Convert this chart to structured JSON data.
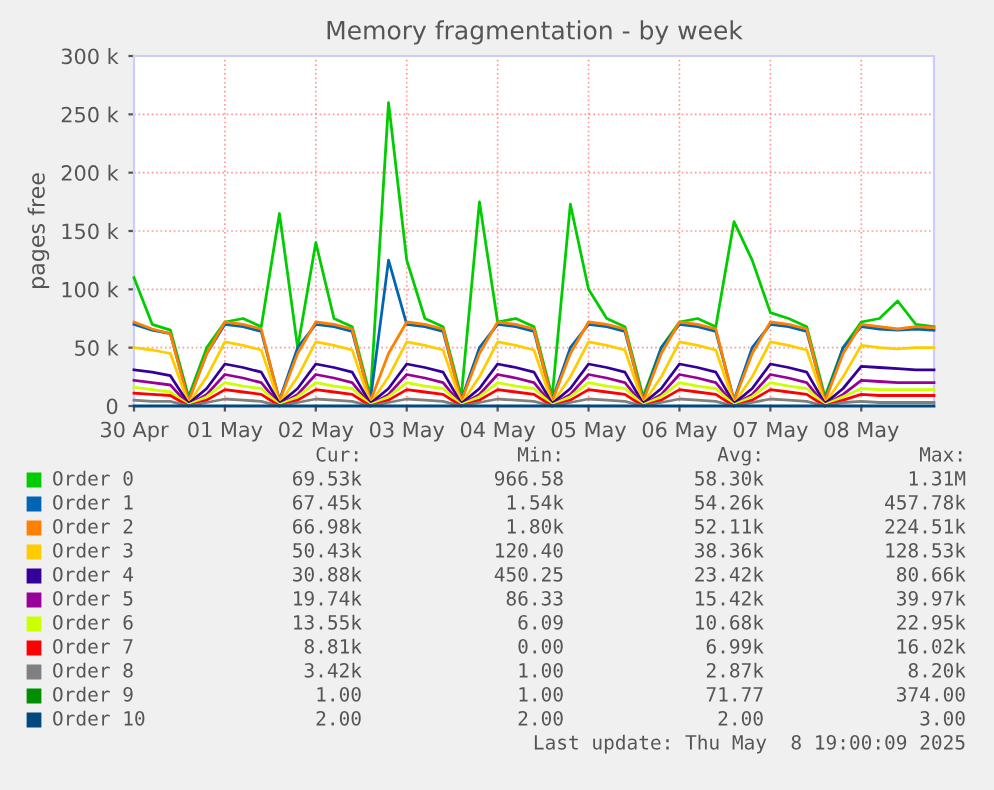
{
  "chart_data": {
    "type": "line",
    "title": "Memory fragmentation - by week",
    "ylabel": "pages free",
    "x": [
      "2025-04-30T00:00",
      "2025-04-30T04:48",
      "2025-04-30T09:36",
      "2025-04-30T14:24",
      "2025-04-30T19:12",
      "2025-05-01T00:00",
      "2025-05-01T04:48",
      "2025-05-01T09:36",
      "2025-05-01T14:24",
      "2025-05-01T19:12",
      "2025-05-02T00:00",
      "2025-05-02T04:48",
      "2025-05-02T09:36",
      "2025-05-02T14:24",
      "2025-05-02T19:12",
      "2025-05-03T00:00",
      "2025-05-03T04:48",
      "2025-05-03T09:36",
      "2025-05-03T14:24",
      "2025-05-03T19:12",
      "2025-05-04T00:00",
      "2025-05-04T04:48",
      "2025-05-04T09:36",
      "2025-05-04T14:24",
      "2025-05-04T19:12",
      "2025-05-05T00:00",
      "2025-05-05T04:48",
      "2025-05-05T09:36",
      "2025-05-05T14:24",
      "2025-05-05T19:12",
      "2025-05-06T00:00",
      "2025-05-06T04:48",
      "2025-05-06T09:36",
      "2025-05-06T14:24",
      "2025-05-06T19:12",
      "2025-05-07T00:00",
      "2025-05-07T04:48",
      "2025-05-07T09:36",
      "2025-05-07T14:24",
      "2025-05-07T19:12",
      "2025-05-08T00:00",
      "2025-05-08T04:48",
      "2025-05-08T09:36",
      "2025-05-08T14:24",
      "2025-05-08T19:12"
    ],
    "xlim": [
      "2025-04-30T00:00",
      "2025-05-08T19:12"
    ],
    "xticks": [
      {
        "value": "2025-04-30",
        "label": "30 Apr"
      },
      {
        "value": "2025-05-01",
        "label": "01 May"
      },
      {
        "value": "2025-05-02",
        "label": "02 May"
      },
      {
        "value": "2025-05-03",
        "label": "03 May"
      },
      {
        "value": "2025-05-04",
        "label": "04 May"
      },
      {
        "value": "2025-05-05",
        "label": "05 May"
      },
      {
        "value": "2025-05-06",
        "label": "06 May"
      },
      {
        "value": "2025-05-07",
        "label": "07 May"
      },
      {
        "value": "2025-05-08",
        "label": "08 May"
      }
    ],
    "ylim": [
      0,
      300000
    ],
    "yticks": [
      0,
      {
        "value": 50000,
        "label": "50 k"
      },
      {
        "value": 100000,
        "label": "100 k"
      },
      {
        "value": 150000,
        "label": "150 k"
      },
      {
        "value": 200000,
        "label": "200 k"
      },
      {
        "value": 250000,
        "label": "250 k"
      },
      {
        "value": 300000,
        "label": "300 k"
      }
    ],
    "grid": true,
    "legend": "bottom",
    "marker": "none",
    "line_style": "solid",
    "series": [
      {
        "name": "Order 0",
        "color": "#00cc00",
        "values": [
          110000,
          70000,
          65000,
          8000,
          50000,
          72000,
          75000,
          68000,
          165000,
          50000,
          140000,
          75000,
          68000,
          8000,
          260000,
          125000,
          75000,
          68000,
          8000,
          175000,
          72000,
          75000,
          68000,
          8000,
          173000,
          100000,
          75000,
          68000,
          8000,
          50000,
          72000,
          75000,
          68000,
          158000,
          125000,
          80000,
          75000,
          68000,
          8000,
          50000,
          72000,
          75000,
          90000,
          70000,
          68000
        ]
      },
      {
        "name": "Order 1",
        "color": "#0066b3",
        "values": [
          70000,
          65000,
          62000,
          5000,
          45000,
          70000,
          68000,
          64000,
          5000,
          50000,
          70000,
          68000,
          64000,
          5000,
          125000,
          70000,
          68000,
          64000,
          5000,
          50000,
          70000,
          68000,
          64000,
          5000,
          50000,
          70000,
          68000,
          64000,
          5000,
          50000,
          70000,
          68000,
          64000,
          5000,
          50000,
          70000,
          68000,
          64000,
          5000,
          50000,
          68000,
          66000,
          65000,
          66000,
          65000
        ]
      },
      {
        "name": "Order 2",
        "color": "#ff8000",
        "values": [
          72000,
          66000,
          62000,
          4000,
          45000,
          72000,
          70000,
          66000,
          4000,
          45000,
          72000,
          70000,
          66000,
          4000,
          45000,
          72000,
          70000,
          66000,
          4000,
          45000,
          72000,
          70000,
          66000,
          4000,
          45000,
          72000,
          70000,
          66000,
          4000,
          45000,
          72000,
          70000,
          66000,
          4000,
          45000,
          72000,
          70000,
          66000,
          4000,
          45000,
          70000,
          68000,
          66000,
          68000,
          67000
        ]
      },
      {
        "name": "Order 3",
        "color": "#ffcc00",
        "values": [
          50000,
          48000,
          45000,
          2000,
          25000,
          55000,
          52000,
          48000,
          2000,
          25000,
          55000,
          52000,
          48000,
          2000,
          25000,
          55000,
          52000,
          48000,
          2000,
          25000,
          55000,
          52000,
          48000,
          2000,
          25000,
          55000,
          52000,
          48000,
          2000,
          25000,
          55000,
          52000,
          48000,
          2000,
          25000,
          55000,
          52000,
          48000,
          2000,
          25000,
          52000,
          50000,
          49000,
          50000,
          50000
        ]
      },
      {
        "name": "Order 4",
        "color": "#330099",
        "values": [
          31000,
          29000,
          26000,
          2000,
          15000,
          36000,
          33000,
          29000,
          2000,
          15000,
          36000,
          33000,
          29000,
          2000,
          15000,
          36000,
          33000,
          29000,
          2000,
          15000,
          36000,
          33000,
          29000,
          2000,
          15000,
          36000,
          33000,
          29000,
          2000,
          15000,
          36000,
          33000,
          29000,
          2000,
          15000,
          36000,
          33000,
          29000,
          2000,
          15000,
          34000,
          33000,
          32000,
          31000,
          31000
        ]
      },
      {
        "name": "Order 5",
        "color": "#990099",
        "values": [
          22000,
          20000,
          18000,
          1000,
          10000,
          27000,
          24000,
          20000,
          1000,
          10000,
          27000,
          24000,
          20000,
          1000,
          10000,
          27000,
          24000,
          20000,
          1000,
          10000,
          27000,
          24000,
          20000,
          1000,
          10000,
          27000,
          24000,
          20000,
          1000,
          10000,
          27000,
          24000,
          20000,
          1000,
          10000,
          27000,
          24000,
          20000,
          1000,
          10000,
          22000,
          21000,
          20000,
          20000,
          20000
        ]
      },
      {
        "name": "Order 6",
        "color": "#ccff00",
        "values": [
          16000,
          14000,
          12000,
          1000,
          8000,
          20000,
          17000,
          15000,
          1000,
          8000,
          20000,
          17000,
          15000,
          1000,
          8000,
          20000,
          17000,
          15000,
          1000,
          8000,
          20000,
          17000,
          15000,
          1000,
          8000,
          20000,
          17000,
          15000,
          1000,
          8000,
          20000,
          17000,
          15000,
          1000,
          8000,
          20000,
          17000,
          15000,
          1000,
          8000,
          15000,
          14000,
          14000,
          14000,
          14000
        ]
      },
      {
        "name": "Order 7",
        "color": "#ff0000",
        "values": [
          11000,
          10000,
          9000,
          0,
          5000,
          14000,
          12000,
          10000,
          0,
          5000,
          14000,
          12000,
          10000,
          0,
          5000,
          14000,
          12000,
          10000,
          0,
          5000,
          14000,
          12000,
          10000,
          0,
          5000,
          14000,
          12000,
          10000,
          0,
          5000,
          14000,
          12000,
          10000,
          0,
          5000,
          14000,
          12000,
          10000,
          0,
          5000,
          10000,
          9000,
          9000,
          9000,
          9000
        ]
      },
      {
        "name": "Order 8",
        "color": "#808080",
        "values": [
          5000,
          4000,
          4000,
          0,
          3000,
          6000,
          5000,
          4000,
          0,
          3000,
          6000,
          5000,
          4000,
          0,
          3000,
          6000,
          5000,
          4000,
          0,
          3000,
          6000,
          5000,
          4000,
          0,
          3000,
          6000,
          5000,
          4000,
          0,
          3000,
          6000,
          5000,
          4000,
          0,
          3000,
          6000,
          5000,
          4000,
          0,
          3000,
          4000,
          3000,
          3000,
          3000,
          3000
        ]
      },
      {
        "name": "Order 9",
        "color": "#008f00",
        "values": [
          null,
          null,
          null,
          null,
          null,
          null,
          null,
          null,
          null,
          null,
          null,
          null,
          null,
          null,
          null,
          null,
          null,
          null,
          null,
          null,
          null,
          null,
          null,
          null,
          null,
          null,
          null,
          null,
          null,
          null,
          null,
          null,
          null,
          null,
          null,
          null,
          null,
          null,
          null,
          null,
          null,
          null,
          null,
          null,
          null
        ]
      },
      {
        "name": "Order 10",
        "color": "#00487d",
        "values": [
          0,
          0,
          0,
          0,
          0,
          0,
          0,
          0,
          0,
          0,
          0,
          0,
          0,
          0,
          0,
          0,
          0,
          0,
          0,
          0,
          0,
          0,
          0,
          0,
          0,
          0,
          0,
          0,
          0,
          0,
          0,
          0,
          0,
          0,
          0,
          0,
          0,
          0,
          0,
          0,
          0,
          0,
          0,
          0,
          0
        ]
      }
    ],
    "annotations": [
      "Cur:",
      "Min:",
      "Avg:",
      "Max:",
      "69.53k",
      "966.58",
      "58.30k",
      "1.31M",
      "67.45k",
      "1.54k",
      "54.26k",
      "457.78k",
      "66.98k",
      "1.80k",
      "52.11k",
      "224.51k",
      "50.43k",
      "120.40",
      "38.36k",
      "128.53k",
      "30.88k",
      "450.25",
      "23.42k",
      "80.66k",
      "19.74k",
      "86.33",
      "15.42k",
      "39.97k",
      "13.55k",
      "6.09",
      "10.68k",
      "22.95k",
      "8.81k",
      "0.00",
      "6.99k",
      "16.02k",
      "3.42k",
      "1.00",
      "2.87k",
      "8.20k",
      "1.00",
      "1.00",
      "71.77",
      "374.00",
      "2.00",
      "2.00",
      "2.00",
      "3.00",
      "Last update: Thu May  8 19:00:09 2025"
    ]
  }
}
